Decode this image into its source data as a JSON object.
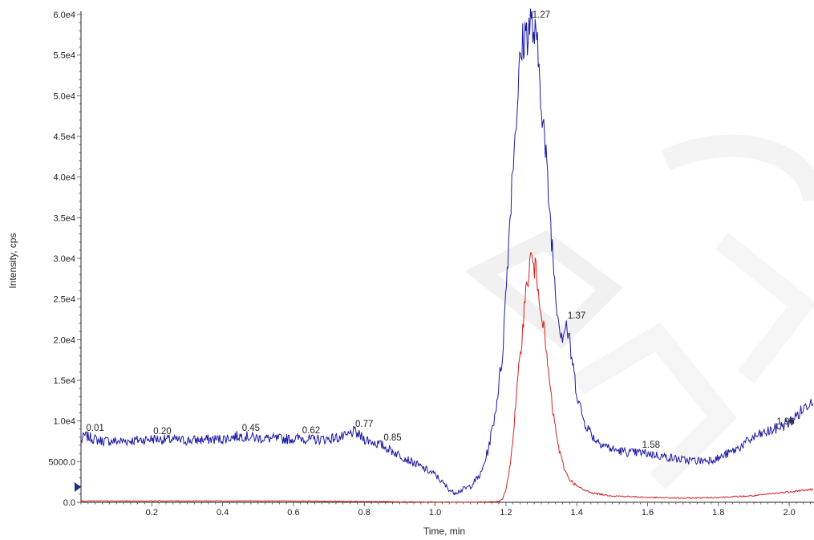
{
  "chart_data": {
    "type": "line",
    "xlabel": "Time, min",
    "ylabel": "Intensity, cps",
    "xlim": [
      0.0,
      2.07
    ],
    "ylim": [
      0,
      60000
    ],
    "x_ticks": [
      {
        "value": 0.2,
        "label": "0.2"
      },
      {
        "value": 0.4,
        "label": "0.4"
      },
      {
        "value": 0.6,
        "label": "0.6"
      },
      {
        "value": 0.8,
        "label": "0.8"
      },
      {
        "value": 1.0,
        "label": "1.0"
      },
      {
        "value": 1.2,
        "label": "1.2"
      },
      {
        "value": 1.4,
        "label": "1.4"
      },
      {
        "value": 1.6,
        "label": "1.6"
      },
      {
        "value": 1.8,
        "label": "1.8"
      },
      {
        "value": 2.0,
        "label": "2.0"
      }
    ],
    "y_ticks": [
      {
        "value": 0,
        "label": "0.0"
      },
      {
        "value": 5000,
        "label": "5000.0"
      },
      {
        "value": 10000,
        "label": "1.0e4"
      },
      {
        "value": 15000,
        "label": "1.5e4"
      },
      {
        "value": 20000,
        "label": "2.0e4"
      },
      {
        "value": 25000,
        "label": "2.5e4"
      },
      {
        "value": 30000,
        "label": "3.0e4"
      },
      {
        "value": 35000,
        "label": "3.5e4"
      },
      {
        "value": 40000,
        "label": "4.0e4"
      },
      {
        "value": 45000,
        "label": "4.5e4"
      },
      {
        "value": 50000,
        "label": "5.0e4"
      },
      {
        "value": 55000,
        "label": "5.5e4"
      },
      {
        "value": 60000,
        "label": "6.0e4"
      }
    ],
    "grid": false,
    "series": [
      {
        "color": "#1a1aa6",
        "x": [
          0.0,
          0.01,
          0.05,
          0.1,
          0.15,
          0.2,
          0.25,
          0.3,
          0.35,
          0.4,
          0.45,
          0.5,
          0.55,
          0.6,
          0.62,
          0.65,
          0.7,
          0.75,
          0.77,
          0.8,
          0.85,
          0.9,
          0.95,
          1.0,
          1.03,
          1.05,
          1.07,
          1.1,
          1.13,
          1.15,
          1.17,
          1.19,
          1.2,
          1.21,
          1.22,
          1.23,
          1.24,
          1.25,
          1.26,
          1.27,
          1.28,
          1.29,
          1.3,
          1.31,
          1.32,
          1.33,
          1.34,
          1.35,
          1.36,
          1.37,
          1.38,
          1.39,
          1.4,
          1.42,
          1.45,
          1.5,
          1.55,
          1.58,
          1.6,
          1.65,
          1.7,
          1.75,
          1.8,
          1.85,
          1.9,
          1.96,
          2.0,
          2.03,
          2.07
        ],
        "y": [
          7500,
          8200,
          7600,
          7500,
          7600,
          7800,
          7700,
          7600,
          7700,
          7800,
          8200,
          7900,
          7800,
          7800,
          7900,
          7700,
          7800,
          8100,
          8700,
          7800,
          7000,
          5800,
          4600,
          3400,
          2000,
          1200,
          1400,
          2000,
          3500,
          6500,
          11000,
          18000,
          26000,
          34000,
          42000,
          48000,
          54000,
          57000,
          58000,
          59000,
          57500,
          55000,
          50000,
          44000,
          38000,
          32000,
          26000,
          22000,
          20500,
          22000,
          19500,
          16500,
          13500,
          10000,
          7800,
          6500,
          6100,
          6100,
          6000,
          5600,
          5200,
          5100,
          5400,
          6500,
          8000,
          9000,
          9800,
          11000,
          13000
        ]
      },
      {
        "color": "#d42020",
        "x": [
          0.0,
          0.2,
          0.4,
          0.6,
          0.8,
          0.9,
          1.0,
          1.1,
          1.15,
          1.18,
          1.19,
          1.2,
          1.21,
          1.22,
          1.23,
          1.24,
          1.25,
          1.26,
          1.27,
          1.28,
          1.29,
          1.3,
          1.31,
          1.32,
          1.33,
          1.34,
          1.35,
          1.36,
          1.37,
          1.38,
          1.4,
          1.42,
          1.45,
          1.5,
          1.55,
          1.6,
          1.7,
          1.8,
          1.9,
          2.0,
          2.07
        ],
        "y": [
          150,
          160,
          170,
          150,
          100,
          50,
          30,
          20,
          40,
          100,
          400,
          1500,
          4000,
          8000,
          13000,
          18000,
          23000,
          27000,
          30000,
          29000,
          27000,
          24000,
          20000,
          16000,
          12000,
          9000,
          6500,
          4800,
          3600,
          2800,
          2000,
          1500,
          1100,
          800,
          700,
          600,
          500,
          600,
          800,
          1300,
          1600
        ]
      }
    ],
    "annotations": [
      {
        "label": "0.01",
        "x": 0.01,
        "y": 8200,
        "series": 0
      },
      {
        "label": "0.20",
        "x": 0.2,
        "y": 7800,
        "series": 0
      },
      {
        "label": "0.45",
        "x": 0.45,
        "y": 8200,
        "series": 0
      },
      {
        "label": "0.62",
        "x": 0.62,
        "y": 7900,
        "series": 0
      },
      {
        "label": "0.77",
        "x": 0.77,
        "y": 8700,
        "series": 0
      },
      {
        "label": "0.85",
        "x": 0.85,
        "y": 7000,
        "series": 0
      },
      {
        "label": "1.27",
        "x": 1.27,
        "y": 59000,
        "series": 0
      },
      {
        "label": "1.37",
        "x": 1.37,
        "y": 22000,
        "series": 0
      },
      {
        "label": "1.58",
        "x": 1.58,
        "y": 6100,
        "series": 0
      },
      {
        "label": "1.96",
        "x": 1.96,
        "y": 9000,
        "series": 0
      }
    ]
  }
}
